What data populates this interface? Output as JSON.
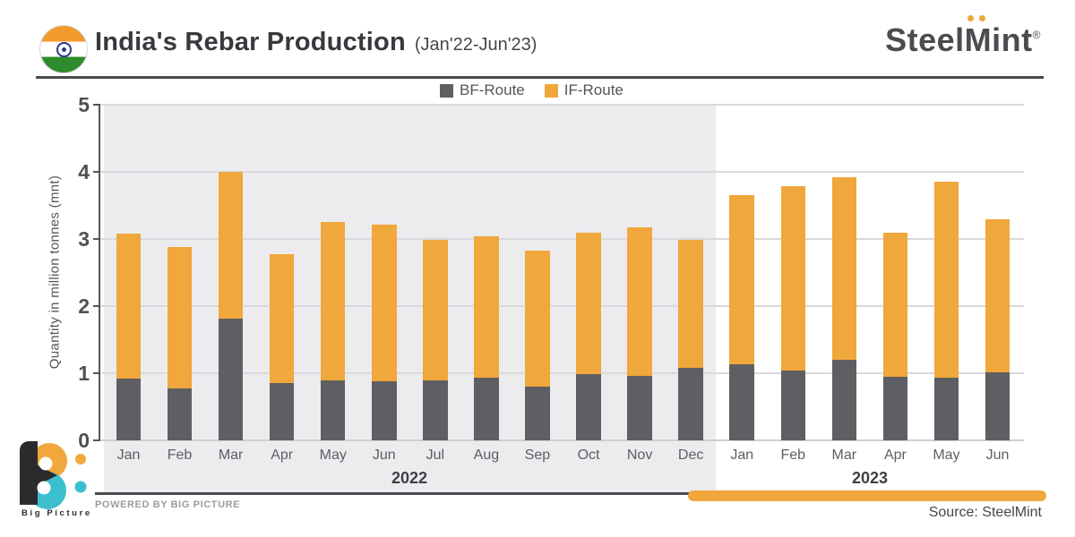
{
  "header": {
    "title": "India's Rebar Production",
    "subtitle": "(Jan'22-Jun'23)",
    "brand": {
      "steel": "Steel",
      "mint_m": "M",
      "mint_rest": "int",
      "registered": "®"
    }
  },
  "legend": [
    {
      "label": "BF-Route",
      "color": "#5F5F63"
    },
    {
      "label": "IF-Route",
      "color": "#F0A73C"
    }
  ],
  "colors": {
    "accent_orange": "#F0A73C",
    "bar_gray": "#5F5F63",
    "band_gray": "#ECECEE",
    "teal": "#3BBFCE",
    "dark_text": "#38393e"
  },
  "chart_data": {
    "type": "bar",
    "stacked": true,
    "title": "India's Rebar Production (Jan'22-Jun'23)",
    "ylabel": "Quantity in million tonnes (mnt)",
    "ylim": [
      0,
      5
    ],
    "yticks": [
      0,
      1,
      2,
      3,
      4,
      5
    ],
    "grid": true,
    "legend_position": "top",
    "categories": [
      "Jan",
      "Feb",
      "Mar",
      "Apr",
      "May",
      "Jun",
      "Jul",
      "Aug",
      "Sep",
      "Oct",
      "Nov",
      "Dec",
      "Jan",
      "Feb",
      "Mar",
      "Apr",
      "May",
      "Jun"
    ],
    "year_groups": [
      {
        "label": "2022",
        "start": 0,
        "end": 11
      },
      {
        "label": "2023",
        "start": 12,
        "end": 17
      }
    ],
    "series": [
      {
        "name": "BF-Route",
        "color": "#5F5F63",
        "values": [
          0.92,
          0.78,
          1.81,
          0.85,
          0.89,
          0.88,
          0.89,
          0.93,
          0.8,
          0.99,
          0.96,
          1.08,
          1.13,
          1.04,
          1.2,
          0.95,
          0.93,
          1.02
        ]
      },
      {
        "name": "IF-Route",
        "color": "#F0A73C",
        "values": [
          2.16,
          2.1,
          2.19,
          1.93,
          2.37,
          2.33,
          2.1,
          2.11,
          2.03,
          2.11,
          2.21,
          1.91,
          2.52,
          2.75,
          2.72,
          2.15,
          2.93,
          2.28
        ]
      }
    ]
  },
  "footer": {
    "bigpicture_text": "Big Picture",
    "powered_by": "POWERED BY BIG PICTURE",
    "source": "Source: SteelMint"
  }
}
